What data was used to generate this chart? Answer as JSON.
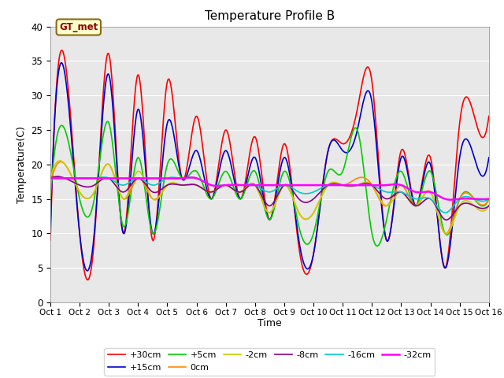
{
  "title": "Temperature Profile B",
  "xlabel": "Time",
  "ylabel": "Temperature(C)",
  "ylim": [
    0,
    40
  ],
  "xlim": [
    0,
    15
  ],
  "xtick_labels": [
    "Oct 1",
    "Oct 2",
    "Oct 3",
    "Oct 4",
    "Oct 5",
    "Oct 6",
    "Oct 7",
    "Oct 8",
    "Oct 9",
    "Oct 10",
    "Oct 11",
    "Oct 12",
    "Oct 13",
    "Oct 14",
    "Oct 15",
    "Oct 16"
  ],
  "ytick_values": [
    0,
    5,
    10,
    15,
    20,
    25,
    30,
    35,
    40
  ],
  "annotation_text": "GT_met",
  "series": {
    "+30cm": {
      "color": "#ff0000",
      "lw": 1.2
    },
    "+15cm": {
      "color": "#0000cc",
      "lw": 1.2
    },
    "+5cm": {
      "color": "#00cc00",
      "lw": 1.2
    },
    "0cm": {
      "color": "#ff8800",
      "lw": 1.2
    },
    "-2cm": {
      "color": "#cccc00",
      "lw": 1.2
    },
    "-8cm": {
      "color": "#880088",
      "lw": 1.2
    },
    "-16cm": {
      "color": "#00cccc",
      "lw": 1.2
    },
    "-32cm": {
      "color": "#ff00ff",
      "lw": 1.8
    }
  },
  "legend_order": [
    "+30cm",
    "+15cm",
    "+5cm",
    "0cm",
    "-2cm",
    "-8cm",
    "-16cm",
    "-32cm"
  ],
  "bg_color": "#e8e8e8",
  "fig_color": "#ffffff"
}
